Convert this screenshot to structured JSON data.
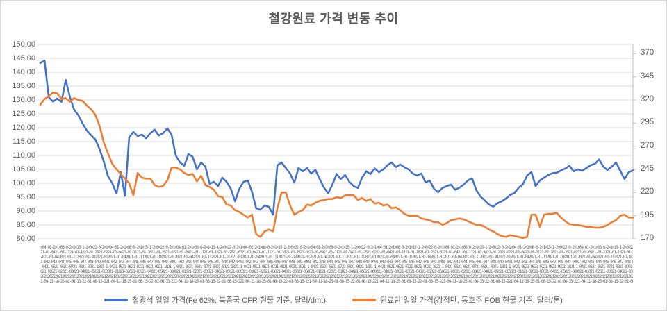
{
  "title": "철강원료 가격 변동 추이",
  "colors": {
    "series_blue": "#4472C4",
    "series_orange": "#ED7D31",
    "gridline": "#D9D9D9",
    "axis_line": "#BFBFBF",
    "text": "#595959"
  },
  "y_axis_left": {
    "min": 80,
    "max": 150,
    "tick_step": 5,
    "tick_labels": [
      "150.00",
      "145.00",
      "140.00",
      "135.00",
      "130.00",
      "125.00",
      "120.00",
      "115.00",
      "110.00",
      "105.00",
      "100.00",
      "95.00",
      "90.00",
      "85.00",
      "80.00"
    ],
    "tick_values": [
      150,
      145,
      140,
      135,
      130,
      125,
      120,
      115,
      110,
      105,
      100,
      95,
      90,
      85,
      80
    ]
  },
  "y_axis_right": {
    "min": 170,
    "max": 380,
    "tick_step": 25,
    "tick_labels": [
      "370",
      "345",
      "320",
      "295",
      "270",
      "245",
      "220",
      "195",
      "170"
    ],
    "tick_values": [
      370,
      345,
      320,
      295,
      270,
      245,
      220,
      195,
      170
    ]
  },
  "x_axis": {
    "description": "daily date labels, hundreds of overlapping entries rendered illegible",
    "garble_rows": [
      "«04·01-2»1«08·0-2»1«15·1-2»0«22·0-2»1",
      "21-01-0421-01-1121-01-1821-01-2521-02",
      "2021-01-042021-01-112021-01-182021-01",
      "1-042-043-044-045-046-047-048-049-040",
      "-0421-0521-0621-0721-0821-0921-1021-1",
      "021-01021-02021-03021-04021-05021-060",
      "2021202120212021202120212021202120212",
      "1-04-11-18-25-01-08-15-22-01-08-15-22"
    ],
    "repeat": 24
  },
  "legend": {
    "items": [
      {
        "label": "철광석 일일 가격(Fe 62%, 북중국 CFR 현물 기준, 달러/dmt)",
        "color": "#4472C4"
      },
      {
        "label": "원료탄 일일 가격(강점탄, 동호주 FOB 현물 기준, 달러/톤)",
        "color": "#ED7D31"
      }
    ]
  },
  "chart_data": {
    "type": "line",
    "title": "철강원료 가격 변동 추이",
    "x_description": "daily dates (tick labels overlap and are illegible in source image)",
    "grid": true,
    "legend_position": "bottom",
    "ylim_left": [
      80,
      150
    ],
    "ylim_right": [
      170,
      380
    ],
    "series": [
      {
        "name": "철광석 일일 가격(Fe 62%, 북중국 CFR 현물 기준, 달러/dmt)",
        "axis": "left",
        "color": "#4472C4",
        "values": [
          143.3,
          144.2,
          131.0,
          129.4,
          130.5,
          129.3,
          137.2,
          131.0,
          126.5,
          124.5,
          121.5,
          119.0,
          117.3,
          115.8,
          112.3,
          107.8,
          102.5,
          100.0,
          96.3,
          104.0,
          95.5,
          116.5,
          118.5,
          117.0,
          117.5,
          116.2,
          118.0,
          119.3,
          117.2,
          118.0,
          119.8,
          117.5,
          110.0,
          107.5,
          106.3,
          110.5,
          109.5,
          105.0,
          107.5,
          106.0,
          99.8,
          100.5,
          99.0,
          102.0,
          100.5,
          98.0,
          93.5,
          98.0,
          100.5,
          101.0,
          97.0,
          91.0,
          90.5,
          92.0,
          91.5,
          88.7,
          106.5,
          107.5,
          105.5,
          103.5,
          100.2,
          105.5,
          104.3,
          105.5,
          103.5,
          104.8,
          101.5,
          98.5,
          96.4,
          99.5,
          103.3,
          101.5,
          103.0,
          100.5,
          99.0,
          98.3,
          102.0,
          104.3,
          103.3,
          105.3,
          104.0,
          105.0,
          106.5,
          107.5,
          105.8,
          106.8,
          105.8,
          105.0,
          103.5,
          102.8,
          103.5,
          100.3,
          101.0,
          98.0,
          96.8,
          98.3,
          99.0,
          99.5,
          97.7,
          98.4,
          99.5,
          101.0,
          101.8,
          97.5,
          95.2,
          93.8,
          92.3,
          91.6,
          92.8,
          93.5,
          94.5,
          95.8,
          96.5,
          98.4,
          99.6,
          102.8,
          104.0,
          99.0,
          101.0,
          102.0,
          103.0,
          103.6,
          103.8,
          104.6,
          105.3,
          106.3,
          104.3,
          105.0,
          104.5,
          105.5,
          106.5,
          107.0,
          108.6,
          106.0,
          104.8,
          106.0,
          107.5,
          104.5,
          101.5,
          104.0,
          104.6
        ]
      },
      {
        "name": "원료탄 일일 가격(강점탄, 동호주 FOB 현물 기준, 달러/톤)",
        "axis": "right",
        "color": "#ED7D31",
        "values": [
          315,
          321,
          324,
          328,
          327,
          321,
          322,
          318,
          322,
          320,
          319,
          314,
          310,
          304,
          292,
          274,
          262,
          251,
          245,
          240,
          235,
          230,
          217,
          241,
          236,
          235,
          235,
          228,
          226,
          227,
          233,
          247,
          247,
          245,
          241,
          239,
          240,
          232,
          238,
          228,
          226,
          223,
          216,
          215,
          207,
          206,
          201,
          199,
          196,
          193,
          196,
          175,
          172,
          178,
          180,
          178,
          203,
          220,
          220,
          206,
          196,
          199,
          201,
          207,
          206,
          209,
          211,
          212,
          213,
          213,
          215,
          214,
          217,
          217,
          217,
          212,
          214,
          211,
          213,
          208,
          209,
          206,
          207,
          203,
          204,
          201,
          197,
          195,
          195,
          195,
          192,
          191,
          190,
          188,
          188,
          185,
          187,
          190,
          191,
          192,
          191,
          189,
          187,
          185,
          185,
          183,
          180,
          178,
          175,
          173,
          172,
          174,
          173,
          172,
          171,
          172,
          196,
          196,
          183,
          196,
          197,
          197,
          198,
          193,
          189,
          186,
          185,
          185,
          184,
          183,
          183,
          182,
          182,
          183,
          185,
          188,
          190,
          195,
          196,
          193,
          193
        ]
      }
    ]
  }
}
